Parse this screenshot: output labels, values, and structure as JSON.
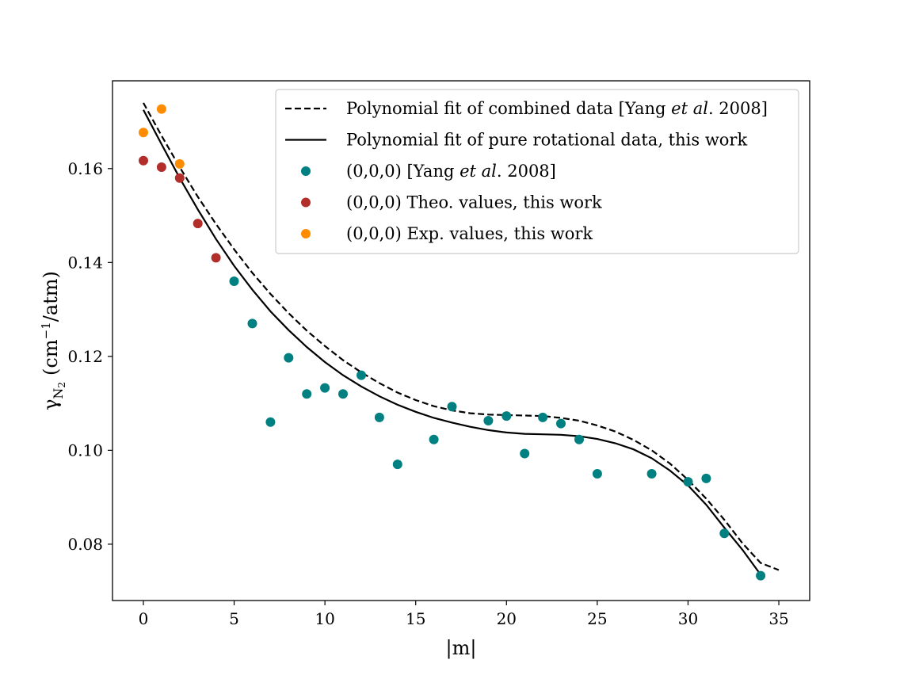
{
  "chart_data": {
    "type": "scatter",
    "xlabel": "|m|",
    "ylabel": {
      "symbol": "γ",
      "subscript": "N",
      "subsub": "2",
      "unit_open": "(cm",
      "unit_exp": "−1",
      "unit_close": "/atm)"
    },
    "xlim": [
      -1.7,
      36.7
    ],
    "ylim": [
      0.068,
      0.1787
    ],
    "xticks": [
      0,
      5,
      10,
      15,
      20,
      25,
      30,
      35
    ],
    "yticks": [
      0.08,
      0.1,
      0.12,
      0.14,
      0.16
    ],
    "ytick_labels": [
      "0.08",
      "0.10",
      "0.12",
      "0.14",
      "0.16"
    ],
    "grid": false,
    "legend_position": "top-right",
    "legend": [
      {
        "kind": "line",
        "style": "dashed",
        "color": "#000000",
        "label": "Polynomial fit of combined data [Yang ",
        "label_italic": "et al",
        "label_tail": ". 2008]"
      },
      {
        "kind": "line",
        "style": "solid",
        "color": "#000000",
        "label": "Polynomial fit of pure rotational data, this work",
        "label_italic": "",
        "label_tail": ""
      },
      {
        "kind": "marker",
        "color": "#008080",
        "label": "(0,0,0) [Yang ",
        "label_italic": "et al",
        "label_tail": ". 2008]"
      },
      {
        "kind": "marker",
        "color": "#b22e2a",
        "label": "(0,0,0) Theo. values, this work",
        "label_italic": "",
        "label_tail": ""
      },
      {
        "kind": "marker",
        "color": "#ff8c00",
        "label": "(0,0,0) Exp. values, this work",
        "label_italic": "",
        "label_tail": ""
      }
    ],
    "lines": [
      {
        "name": "Polynomial fit of combined data",
        "style": "dashed",
        "color": "#000000",
        "x": [
          0,
          1,
          2,
          3,
          4,
          5,
          6,
          7,
          8,
          9,
          10,
          11,
          12,
          13,
          14,
          15,
          16,
          17,
          18,
          19,
          20,
          21,
          22,
          23,
          24,
          25,
          26,
          27,
          28,
          29,
          30,
          31,
          32,
          33,
          34,
          35
        ],
        "y": [
          0.174,
          0.167,
          0.1603,
          0.154,
          0.1482,
          0.1428,
          0.1378,
          0.1333,
          0.1292,
          0.1255,
          0.1222,
          0.1192,
          0.1166,
          0.1143,
          0.1123,
          0.1107,
          0.1094,
          0.1085,
          0.1079,
          0.1076,
          0.1075,
          0.1074,
          0.1073,
          0.1069,
          0.1063,
          0.1053,
          0.104,
          0.1022,
          0.1,
          0.0972,
          0.0937,
          0.0897,
          0.0852,
          0.0802,
          0.076,
          0.0745
        ]
      },
      {
        "name": "Polynomial fit of pure rotational data, this work",
        "style": "solid",
        "color": "#000000",
        "x": [
          0,
          1,
          2,
          3,
          4,
          5,
          6,
          7,
          8,
          9,
          10,
          11,
          12,
          13,
          14,
          15,
          16,
          17,
          18,
          19,
          20,
          21,
          22,
          23,
          24,
          25,
          26,
          27,
          28,
          29,
          30,
          31,
          32,
          33,
          34
        ],
        "y": [
          0.1725,
          0.1652,
          0.158,
          0.1513,
          0.145,
          0.1393,
          0.1342,
          0.1296,
          0.1256,
          0.122,
          0.1188,
          0.116,
          0.1136,
          0.1115,
          0.1097,
          0.1082,
          0.1069,
          0.1059,
          0.105,
          0.1043,
          0.1038,
          0.1035,
          0.1034,
          0.1033,
          0.103,
          0.1024,
          0.1015,
          0.1002,
          0.0983,
          0.0957,
          0.0925,
          0.0884,
          0.0835,
          0.0788,
          0.0735
        ]
      }
    ],
    "series": [
      {
        "name": "(0,0,0) [Yang et al. 2008]",
        "color": "#008080",
        "x": [
          5,
          6,
          7,
          8,
          9,
          10,
          11,
          12,
          13,
          14,
          16,
          17,
          19,
          20,
          21,
          22,
          23,
          24,
          25,
          28,
          30,
          31,
          32,
          34
        ],
        "y": [
          0.136,
          0.127,
          0.106,
          0.1197,
          0.112,
          0.1133,
          0.112,
          0.116,
          0.107,
          0.097,
          0.1023,
          0.1093,
          0.1063,
          0.1073,
          0.0993,
          0.107,
          0.1057,
          0.1023,
          0.095,
          0.095,
          0.0933,
          0.094,
          0.0823,
          0.0733
        ]
      },
      {
        "name": "(0,0,0) Theo. values, this work",
        "color": "#b22e2a",
        "x": [
          0,
          1,
          2,
          3,
          4
        ],
        "y": [
          0.1617,
          0.1603,
          0.158,
          0.1483,
          0.141
        ]
      },
      {
        "name": "(0,0,0) Exp. values, this work",
        "color": "#ff8c00",
        "x": [
          0,
          1,
          2
        ],
        "y": [
          0.1677,
          0.1727,
          0.161
        ]
      }
    ]
  }
}
